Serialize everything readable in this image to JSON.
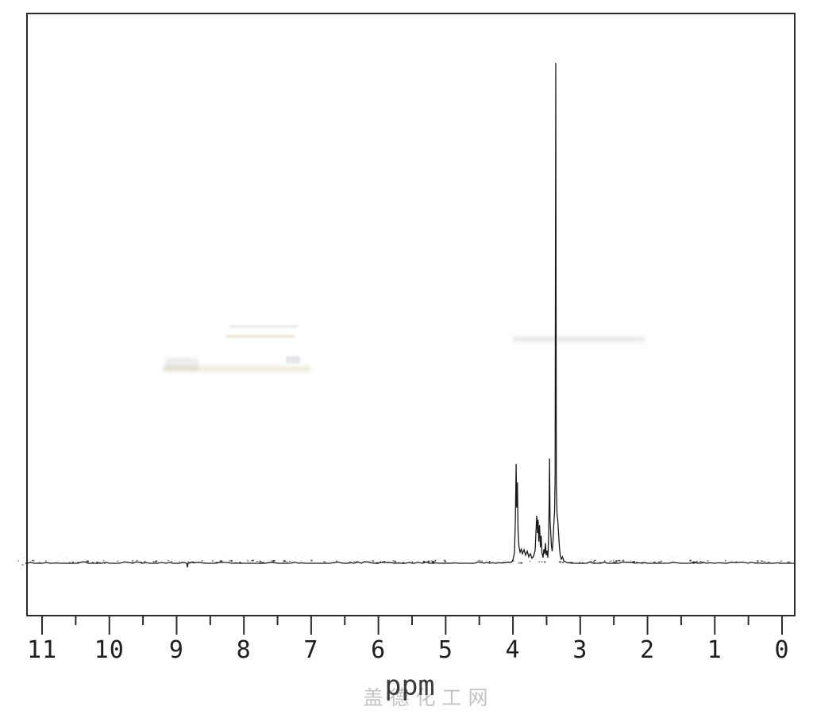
{
  "page": {
    "background": "#ffffff"
  },
  "watermark": {
    "text": "盖德化工网",
    "color": "#c3c3c3"
  },
  "chart_data": {
    "type": "line",
    "title": "",
    "xlabel": "ppm",
    "ylabel": "",
    "xlim": [
      11.25,
      -0.2
    ],
    "x_axis_reversed": true,
    "ylim": [
      0,
      1.1
    ],
    "grid": false,
    "legend": false,
    "line_color": "#1a1a1a",
    "frame_color": "#2b2b2b",
    "x_tick_labels": [
      "11",
      "10",
      "9",
      "8",
      "7",
      "6",
      "5",
      "4",
      "3",
      "2",
      "1",
      "0"
    ],
    "x_major_ticks": [
      11,
      10,
      9,
      8,
      7,
      6,
      5,
      4,
      3,
      2,
      1,
      0
    ],
    "x_minor_ticks": [
      10.5,
      9.5,
      8.5,
      7.5,
      6.5,
      5.5,
      4.5,
      3.5,
      2.5,
      1.5,
      0.5
    ],
    "peaks": [
      {
        "ppm": 3.95,
        "rel_intensity": 0.2,
        "note": "sharp spike with twin line"
      },
      {
        "ppm": 3.93,
        "rel_intensity": 0.16
      },
      {
        "ppm": 3.65,
        "rel_intensity": 0.1,
        "note": "multiplet cluster 3.57-3.66"
      },
      {
        "ppm": 3.6,
        "rel_intensity": 0.08
      },
      {
        "ppm": 3.46,
        "rel_intensity": 0.21,
        "note": "narrow spike"
      },
      {
        "ppm": 3.36,
        "rel_intensity": 1.0,
        "note": "dominant tall singlet"
      }
    ],
    "trace": [
      [
        11.25,
        0
      ],
      [
        11.0,
        0
      ],
      [
        10.5,
        0
      ],
      [
        10.0,
        0
      ],
      [
        9.5,
        0
      ],
      [
        9.0,
        0
      ],
      [
        8.85,
        0
      ],
      [
        8.84,
        -0.008
      ],
      [
        8.83,
        0
      ],
      [
        8.5,
        0
      ],
      [
        8.0,
        0
      ],
      [
        7.5,
        0
      ],
      [
        7.0,
        0
      ],
      [
        6.5,
        0
      ],
      [
        6.0,
        0
      ],
      [
        5.5,
        0
      ],
      [
        5.0,
        0
      ],
      [
        4.6,
        0
      ],
      [
        4.3,
        0.001
      ],
      [
        4.2,
        0.001
      ],
      [
        4.08,
        0.002
      ],
      [
        4.025,
        0.002
      ],
      [
        4.001,
        0.006
      ],
      [
        3.989,
        0.014
      ],
      [
        3.977,
        0.021
      ],
      [
        3.965,
        0.087
      ],
      [
        3.953,
        0.198
      ],
      [
        3.946,
        0.111
      ],
      [
        3.934,
        0.161
      ],
      [
        3.924,
        0.066
      ],
      [
        3.912,
        0.035
      ],
      [
        3.894,
        0.022
      ],
      [
        3.876,
        0.028
      ],
      [
        3.859,
        0.019
      ],
      [
        3.835,
        0.027
      ],
      [
        3.812,
        0.016
      ],
      [
        3.788,
        0.024
      ],
      [
        3.765,
        0.013
      ],
      [
        3.741,
        0.019
      ],
      [
        3.718,
        0.01
      ],
      [
        3.694,
        0.014
      ],
      [
        3.671,
        0.025
      ],
      [
        3.659,
        0.06
      ],
      [
        3.647,
        0.095
      ],
      [
        3.635,
        0.06
      ],
      [
        3.626,
        0.087
      ],
      [
        3.616,
        0.043
      ],
      [
        3.604,
        0.076
      ],
      [
        3.593,
        0.032
      ],
      [
        3.581,
        0.055
      ],
      [
        3.569,
        0.021
      ],
      [
        3.553,
        0.011
      ],
      [
        3.541,
        0.028
      ],
      [
        3.529,
        0.019
      ],
      [
        3.517,
        0.04
      ],
      [
        3.506,
        0.016
      ],
      [
        3.494,
        0.025
      ],
      [
        3.482,
        0.011
      ],
      [
        3.47,
        0.054
      ],
      [
        3.463,
        0.111
      ],
      [
        3.456,
        0.209
      ],
      [
        3.449,
        0.087
      ],
      [
        3.441,
        0.066
      ],
      [
        3.429,
        0.035
      ],
      [
        3.417,
        0.024
      ],
      [
        3.405,
        0.044
      ],
      [
        3.394,
        0.073
      ],
      [
        3.382,
        0.103
      ],
      [
        3.373,
        0.174
      ],
      [
        3.364,
        0.998
      ],
      [
        3.355,
        0.158
      ],
      [
        3.345,
        0.098
      ],
      [
        3.334,
        0.087
      ],
      [
        3.322,
        0.06
      ],
      [
        3.31,
        0.032
      ],
      [
        3.298,
        0.016
      ],
      [
        3.281,
        0.008
      ],
      [
        3.264,
        0.013
      ],
      [
        3.246,
        0.005
      ],
      [
        3.222,
        0.003
      ],
      [
        3.187,
        0.001
      ],
      [
        3.1,
        0
      ],
      [
        3.0,
        0
      ],
      [
        2.5,
        0
      ],
      [
        2.0,
        0
      ],
      [
        1.5,
        0
      ],
      [
        1.0,
        0
      ],
      [
        0.5,
        0
      ],
      [
        0.0,
        0
      ],
      [
        -0.2,
        0
      ]
    ]
  }
}
